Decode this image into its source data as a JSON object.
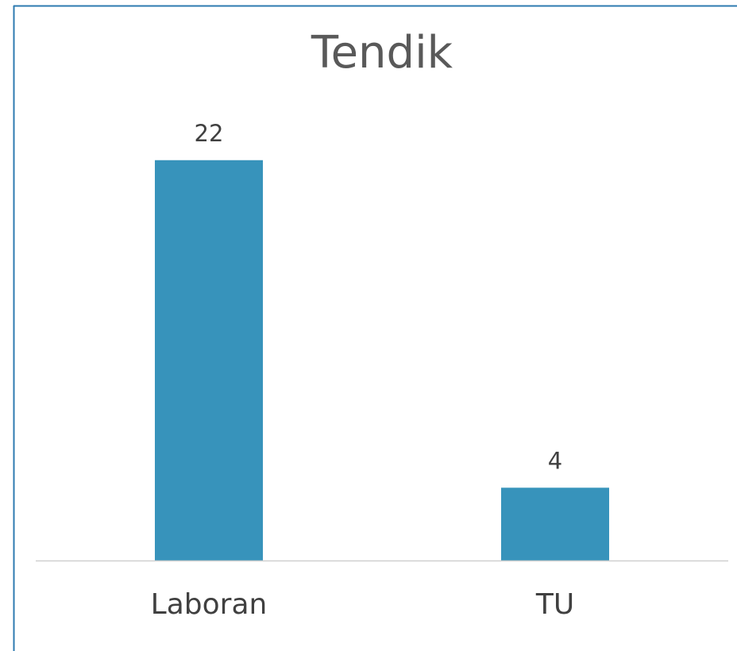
{
  "chart_data": {
    "type": "bar",
    "title": "Tendik",
    "categories": [
      "Laboran",
      "TU"
    ],
    "values": [
      22,
      4
    ],
    "color": "#3793bb",
    "ylim": [
      0,
      25
    ]
  }
}
